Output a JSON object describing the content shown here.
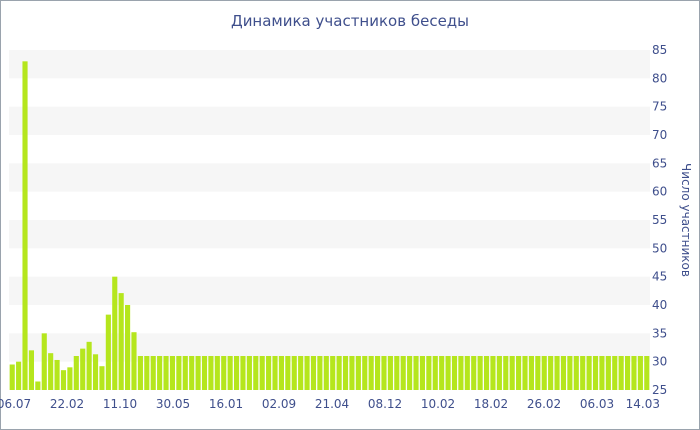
{
  "chart_data": {
    "type": "bar",
    "title": "Динамика участников беседы",
    "ylabel": "Число участников",
    "xlabel": "",
    "ylim": [
      25,
      85
    ],
    "yticks": [
      25,
      30,
      35,
      40,
      45,
      50,
      55,
      60,
      65,
      70,
      75,
      80,
      85
    ],
    "x_tick_labels": [
      "06.07",
      "22.02",
      "11.10",
      "30.05",
      "16.01",
      "02.09",
      "21.04",
      "08.12",
      "10.02",
      "18.02",
      "26.02",
      "06.03",
      "14.03"
    ],
    "grid": "alternating horizontal bands",
    "bar_color": "#b5e61d",
    "band_color": "#f6f6f6",
    "values": [
      29.5,
      30,
      83,
      32,
      26.5,
      35,
      31.5,
      30.3,
      28.5,
      29,
      31,
      32.3,
      33.5,
      31.3,
      29.2,
      38.3,
      45,
      42.1,
      40,
      35.2,
      31,
      31,
      31,
      31,
      31,
      31,
      31,
      31,
      31,
      31,
      31,
      31,
      31,
      31,
      31,
      31,
      31,
      31,
      31,
      31,
      31,
      31,
      31,
      31,
      31,
      31,
      31,
      31,
      31,
      31,
      31,
      31,
      31,
      31,
      31,
      31,
      31,
      31,
      31,
      31,
      31,
      31,
      31,
      31,
      31,
      31,
      31,
      31,
      31,
      31,
      31,
      31,
      31,
      31,
      31,
      31,
      31,
      31,
      31,
      31,
      31,
      31,
      31,
      31,
      31,
      31,
      31,
      31,
      31,
      31,
      31,
      31,
      31,
      31,
      31,
      31,
      31,
      31,
      31,
      31
    ]
  }
}
